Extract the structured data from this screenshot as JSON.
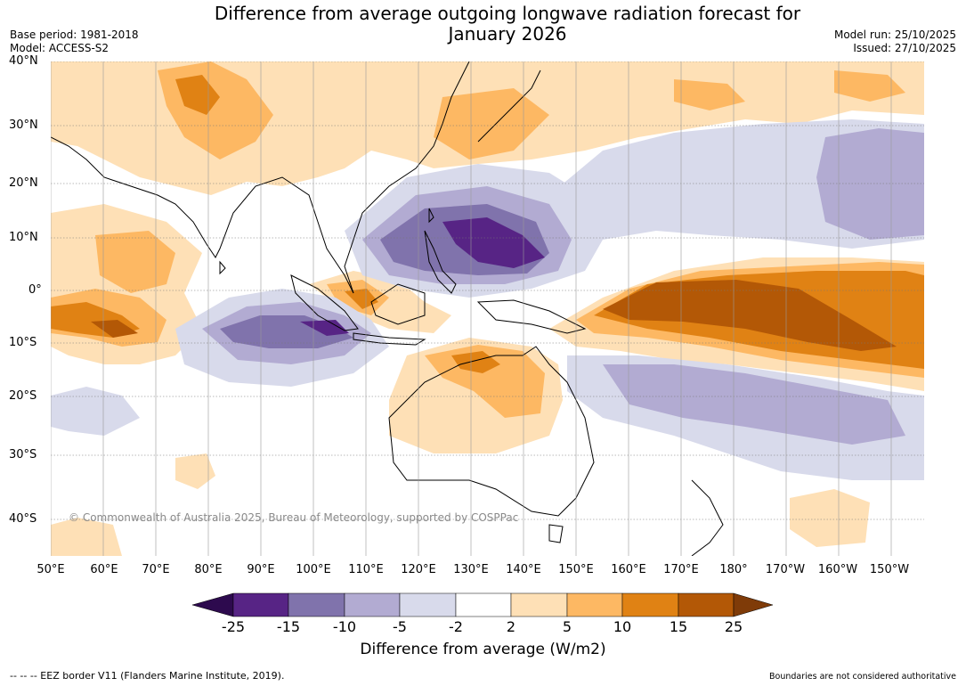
{
  "header": {
    "title": "Difference from average outgoing longwave radiation forecast for January 2026",
    "base_period": "Base period: 1981-2018",
    "model": "Model: ACCESS-S2",
    "model_run": "Model run: 25/10/2025",
    "issued": "Issued: 27/10/2025"
  },
  "map": {
    "lat_labels": [
      "40°N",
      "30°N",
      "20°N",
      "10°N",
      "0°",
      "10°S",
      "20°S",
      "30°S",
      "40°S"
    ],
    "lon_labels": [
      "50°E",
      "60°E",
      "70°E",
      "80°E",
      "90°E",
      "100°E",
      "110°E",
      "120°E",
      "130°E",
      "140°E",
      "150°E",
      "160°E",
      "170°E",
      "180°",
      "170°W",
      "160°W",
      "150°W"
    ],
    "copyright": "© Commonwealth of Australia 2025, Bureau of Meteorology, supported by COSPPac"
  },
  "colorbar": {
    "ticks": [
      "-25",
      "-15",
      "-10",
      "-5",
      "-2",
      "2",
      "5",
      "10",
      "15",
      "25"
    ],
    "label": "Difference from average (W/m2)",
    "colors": {
      "lt_neg25": "#2d0a4e",
      "neg25_neg15": "#572485",
      "neg15_neg10": "#8073ac",
      "neg10_neg5": "#b2abd2",
      "neg5_neg2": "#d8daeb",
      "neg2_2": "#ffffff",
      "p2_5": "#fee0b6",
      "p5_10": "#fdb863",
      "p10_15": "#e08214",
      "p15_25": "#b35806",
      "gt25": "#7f3b08"
    }
  },
  "footer": {
    "eez_note": "--  --  -- EEZ border V11 (Flanders Marine Institute, 2019).",
    "disclaimer": "Boundaries are not considered authoritative"
  }
}
